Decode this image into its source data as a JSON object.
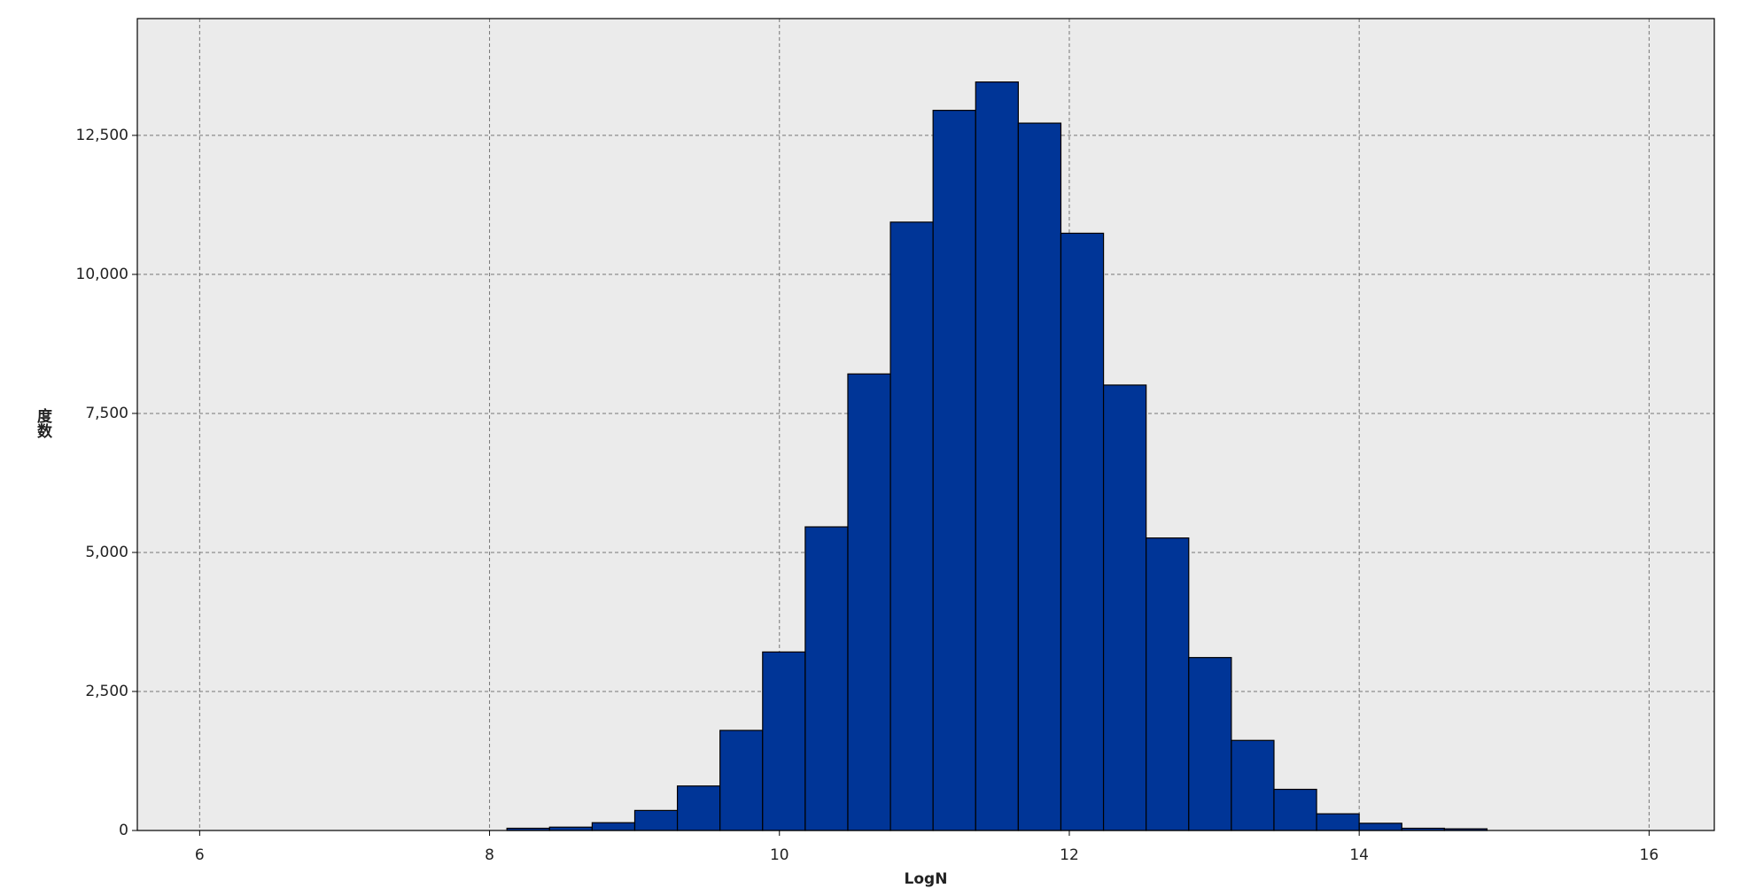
{
  "chart_data": {
    "type": "histogram",
    "xlabel": "LogN",
    "ylabel": "度数",
    "bins": [
      8.12,
      8.414,
      8.708,
      9.002,
      9.296,
      9.59,
      9.884,
      10.178,
      10.472,
      10.766,
      11.06,
      11.354,
      11.648,
      11.942,
      12.236,
      12.53,
      12.824,
      13.118,
      13.412,
      13.706,
      14.0,
      14.294,
      14.588,
      14.882
    ],
    "values": [
      40,
      60,
      140,
      360,
      800,
      1800,
      3210,
      5460,
      8210,
      10940,
      12950,
      13460,
      12720,
      10740,
      8010,
      5260,
      3110,
      1620,
      740,
      300,
      130,
      40,
      30
    ],
    "color": "#003597",
    "xlim": [
      5.57,
      16.45
    ],
    "xticks": [
      6,
      8,
      10,
      12,
      14,
      16
    ],
    "ylim": [
      0,
      14600
    ],
    "yticks": [
      0,
      {
        "value": 2500,
        "label": "2,500"
      },
      {
        "value": 5000,
        "label": "5,000"
      },
      {
        "value": 7500,
        "label": "7,500"
      },
      {
        "value": 10000,
        "label": "10,000"
      },
      {
        "value": 12500,
        "label": "12,500"
      }
    ],
    "grid": true
  }
}
